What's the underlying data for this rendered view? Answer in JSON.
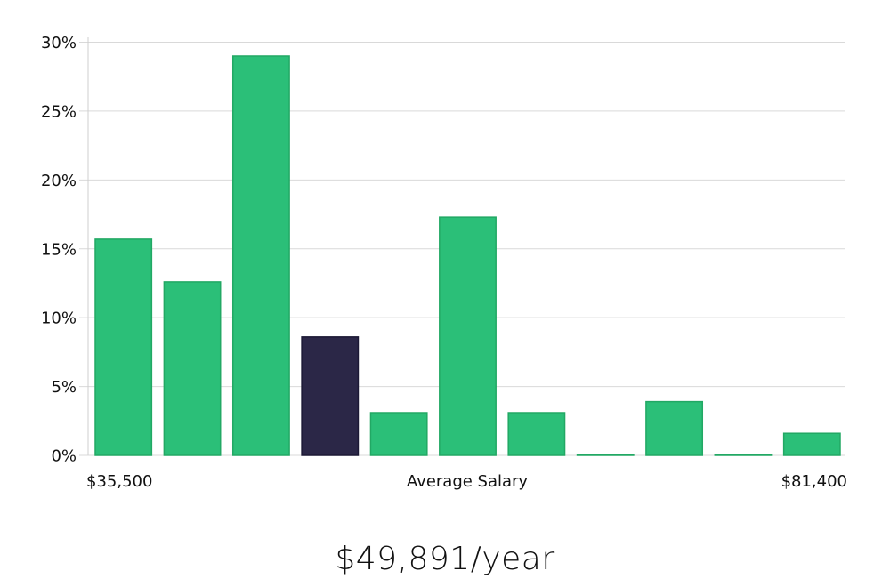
{
  "chart_data": {
    "type": "bar",
    "values": [
      15.7,
      12.6,
      29.0,
      8.6,
      3.1,
      17.3,
      3.1,
      0.05,
      3.9,
      0.05,
      1.6
    ],
    "highlight_index": 3,
    "y_ticks": [
      "0%",
      "5%",
      "10%",
      "15%",
      "20%",
      "25%",
      "30%"
    ],
    "ylim": [
      0,
      30
    ],
    "grid": true,
    "x_labels": {
      "left": "$35,500",
      "center": "Average Salary",
      "right": "$81,400"
    },
    "colors": {
      "bar": "#2bbf78",
      "bar_edge": "#22a864",
      "highlight": "#2b2747",
      "highlight_edge": "#1c1935"
    }
  },
  "salary_label": "$49,891/year"
}
